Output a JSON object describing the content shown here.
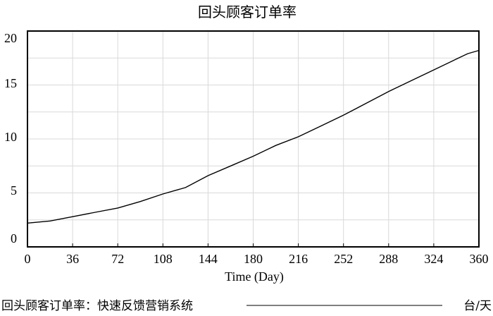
{
  "chart_data": {
    "type": "line",
    "title": "回头顾客订单率",
    "xlabel": "Time (Day)",
    "ylabel": "",
    "xlim": [
      0,
      360
    ],
    "ylim": [
      0,
      20
    ],
    "x_ticks": [
      0,
      36,
      72,
      108,
      144,
      180,
      216,
      252,
      288,
      324,
      360
    ],
    "y_ticks": [
      0,
      5,
      10,
      15,
      20
    ],
    "grid": true,
    "legend": {
      "position": "bottom",
      "series_label": "回头顾客订单率：快速反馈营销系统",
      "unit": "台/天"
    },
    "series": [
      {
        "name": "回头顾客订单率：快速反馈营销系统",
        "color": "#000000",
        "x": [
          0,
          18,
          36,
          54,
          72,
          90,
          108,
          126,
          144,
          162,
          180,
          198,
          216,
          234,
          252,
          270,
          288,
          306,
          324,
          342,
          351,
          360
        ],
        "y": [
          2.2,
          2.4,
          2.8,
          3.2,
          3.6,
          4.2,
          4.9,
          5.5,
          6.6,
          7.5,
          8.4,
          9.4,
          10.2,
          11.2,
          12.2,
          13.3,
          14.4,
          15.4,
          16.4,
          17.4,
          17.9,
          18.2
        ]
      }
    ]
  }
}
